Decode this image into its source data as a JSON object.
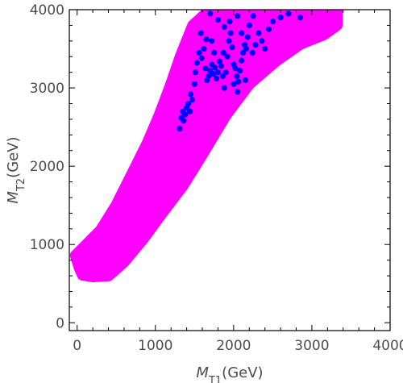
{
  "chart_data": {
    "type": "scatter",
    "title": "",
    "xlabel": {
      "main": "M",
      "sub": "T1",
      "unit": "(GeV)"
    },
    "ylabel": {
      "main": "M",
      "sub": "T2",
      "unit": "(GeV)"
    },
    "xlim": [
      -100,
      4000
    ],
    "ylim": [
      -100,
      4000
    ],
    "x_ticks": [
      0,
      1000,
      2000,
      3000,
      4000
    ],
    "y_ticks": [
      0,
      1000,
      2000,
      3000,
      4000
    ],
    "x_tick_labels": [
      "0",
      "1000",
      "2000",
      "3000",
      "4000"
    ],
    "y_tick_labels": [
      "0",
      "1000",
      "2000",
      "3000",
      "4000"
    ],
    "grid": false,
    "series": [
      {
        "color": "#ff00ff",
        "kind": "region",
        "points": [
          [
            -20,
            860
          ],
          [
            30,
            700
          ],
          [
            70,
            610
          ],
          [
            200,
            590
          ],
          [
            400,
            600
          ],
          [
            600,
            780
          ],
          [
            850,
            1080
          ],
          [
            1100,
            1420
          ],
          [
            1350,
            1750
          ],
          [
            1600,
            2150
          ],
          [
            1900,
            2650
          ],
          [
            2200,
            3050
          ],
          [
            2550,
            3350
          ],
          [
            2850,
            3560
          ],
          [
            3150,
            3680
          ],
          [
            3320,
            3800
          ],
          [
            3320,
            3990
          ],
          [
            2950,
            4000
          ],
          [
            2200,
            4000
          ],
          [
            1700,
            4000
          ],
          [
            1480,
            3800
          ],
          [
            1320,
            3400
          ],
          [
            1200,
            3050
          ],
          [
            1050,
            2650
          ],
          [
            900,
            2300
          ],
          [
            700,
            1900
          ],
          [
            500,
            1500
          ],
          [
            300,
            1180
          ],
          [
            120,
            1000
          ]
        ]
      },
      {
        "color": "#0000ff",
        "kind": "points",
        "points": [
          [
            1310,
            2480
          ],
          [
            1330,
            2620
          ],
          [
            1350,
            2700
          ],
          [
            1380,
            2660
          ],
          [
            1400,
            2750
          ],
          [
            1420,
            2800
          ],
          [
            1360,
            2580
          ],
          [
            1440,
            2700
          ],
          [
            1470,
            2850
          ],
          [
            1450,
            2920
          ],
          [
            1500,
            3050
          ],
          [
            1510,
            3200
          ],
          [
            1530,
            3320
          ],
          [
            1560,
            3450
          ],
          [
            1590,
            3380
          ],
          [
            1620,
            3500
          ],
          [
            1640,
            3250
          ],
          [
            1660,
            3100
          ],
          [
            1680,
            3150
          ],
          [
            1700,
            3220
          ],
          [
            1720,
            3300
          ],
          [
            1740,
            3180
          ],
          [
            1760,
            3260
          ],
          [
            1780,
            3120
          ],
          [
            1800,
            3200
          ],
          [
            1820,
            3340
          ],
          [
            1840,
            3280
          ],
          [
            1860,
            3150
          ],
          [
            1880,
            3000
          ],
          [
            1900,
            3200
          ],
          [
            1920,
            3400
          ],
          [
            1940,
            3600
          ],
          [
            1960,
            3700
          ],
          [
            1980,
            3520
          ],
          [
            2000,
            3300
          ],
          [
            2020,
            3250
          ],
          [
            2040,
            3150
          ],
          [
            2060,
            3080
          ],
          [
            2080,
            3220
          ],
          [
            2100,
            3350
          ],
          [
            2120,
            3450
          ],
          [
            2140,
            3550
          ],
          [
            2160,
            3500
          ],
          [
            2180,
            3650
          ],
          [
            2200,
            3800
          ],
          [
            2240,
            3450
          ],
          [
            2280,
            3550
          ],
          [
            2320,
            3700
          ],
          [
            2360,
            3600
          ],
          [
            2400,
            3500
          ],
          [
            2450,
            3750
          ],
          [
            2500,
            3850
          ],
          [
            2600,
            3900
          ],
          [
            2700,
            3950
          ],
          [
            2850,
            3900
          ],
          [
            1700,
            3950
          ],
          [
            1800,
            3870
          ],
          [
            1880,
            3780
          ],
          [
            1950,
            3850
          ],
          [
            2050,
            3920
          ],
          [
            2100,
            3700
          ],
          [
            2250,
            3920
          ],
          [
            1580,
            3700
          ],
          [
            1650,
            3620
          ],
          [
            1750,
            3450
          ],
          [
            2000,
            3050
          ],
          [
            2050,
            2950
          ],
          [
            2150,
            3100
          ],
          [
            1870,
            3450
          ],
          [
            1720,
            3600
          ]
        ]
      }
    ]
  }
}
